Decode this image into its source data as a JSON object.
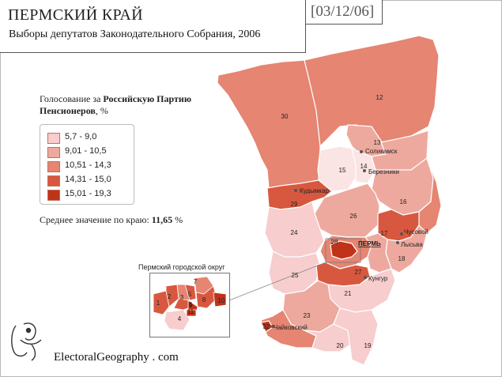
{
  "header": {
    "title": "ПЕРМСКИЙ КРАЙ",
    "subtitle": "Выборы депутатов Законодательного Собрания, 2006",
    "date": "[03/12/06]"
  },
  "legend": {
    "heading_prefix": "Голосование за ",
    "party": "Российскую Партию Пенсионеров",
    "heading_suffix": ", %",
    "classes": [
      {
        "label": "5,7 - 9,0",
        "color": "#f7cdcd"
      },
      {
        "label": "9,01 - 10,5",
        "color": "#eea99e"
      },
      {
        "label": "10,51 - 14,3",
        "color": "#e58572"
      },
      {
        "label": "14,31 - 15,0",
        "color": "#d8583f"
      },
      {
        "label": "15,01 - 19,3",
        "color": "#c03318"
      }
    ]
  },
  "average": {
    "prefix": "Среднее значение по краю: ",
    "value": "11,65",
    "suffix": " %"
  },
  "inset": {
    "title": "Пермский городской округ",
    "district_labels": [
      "1",
      "2",
      "3",
      "4",
      "5",
      "6",
      "7",
      "8",
      "9",
      "10",
      "11"
    ]
  },
  "map": {
    "region_labels": [
      "12",
      "13",
      "14",
      "15",
      "16",
      "17",
      "18",
      "19",
      "20",
      "21",
      "23",
      "24",
      "25",
      "26",
      "27",
      "28",
      "29",
      "30",
      "32"
    ],
    "cities": [
      "Соликамск",
      "Березники",
      "Кудымкар",
      "ПЕРМЬ",
      "Чусовой",
      "Лысьва",
      "Кунгур",
      "Чайковский"
    ]
  },
  "footer": {
    "brand": "ElectoralGeography . com"
  }
}
